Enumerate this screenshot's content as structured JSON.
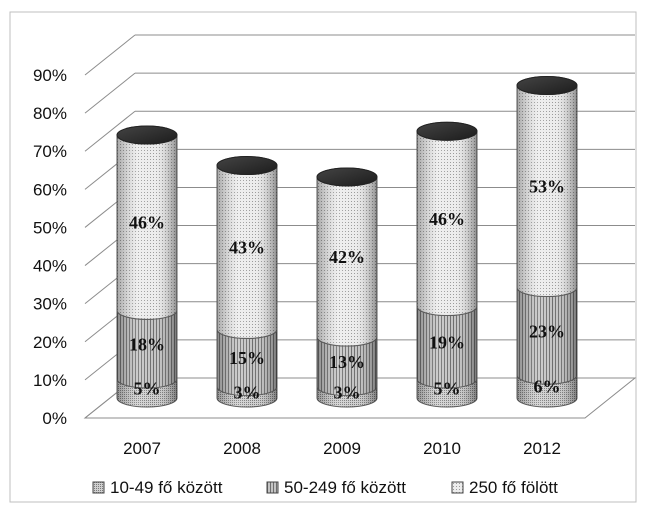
{
  "chart_data": {
    "type": "bar",
    "stacked": true,
    "style": "3d-cylinder",
    "categories": [
      "2007",
      "2008",
      "2009",
      "2010",
      "2012"
    ],
    "series": [
      {
        "name": "10-49 fő között",
        "values": [
          5,
          3,
          3,
          5,
          6
        ],
        "labels": [
          "5%",
          "3%",
          "3%",
          "5%",
          "6%"
        ],
        "color": "#b5b5b5"
      },
      {
        "name": "50-249 fő között",
        "values": [
          18,
          15,
          13,
          19,
          23
        ],
        "labels": [
          "18%",
          "15%",
          "13%",
          "19%",
          "23%"
        ],
        "color": "#a8a8a8"
      },
      {
        "name": "250 fő fölött",
        "values": [
          46,
          43,
          42,
          46,
          53
        ],
        "labels": [
          "46%",
          "43%",
          "42%",
          "46%",
          "53%"
        ],
        "color": "#e2e2e2"
      }
    ],
    "y_ticks": [
      "0%",
      "10%",
      "20%",
      "30%",
      "40%",
      "50%",
      "60%",
      "70%",
      "80%",
      "90%"
    ],
    "ylim": [
      0,
      90
    ],
    "grid": true,
    "legend_position": "bottom"
  }
}
